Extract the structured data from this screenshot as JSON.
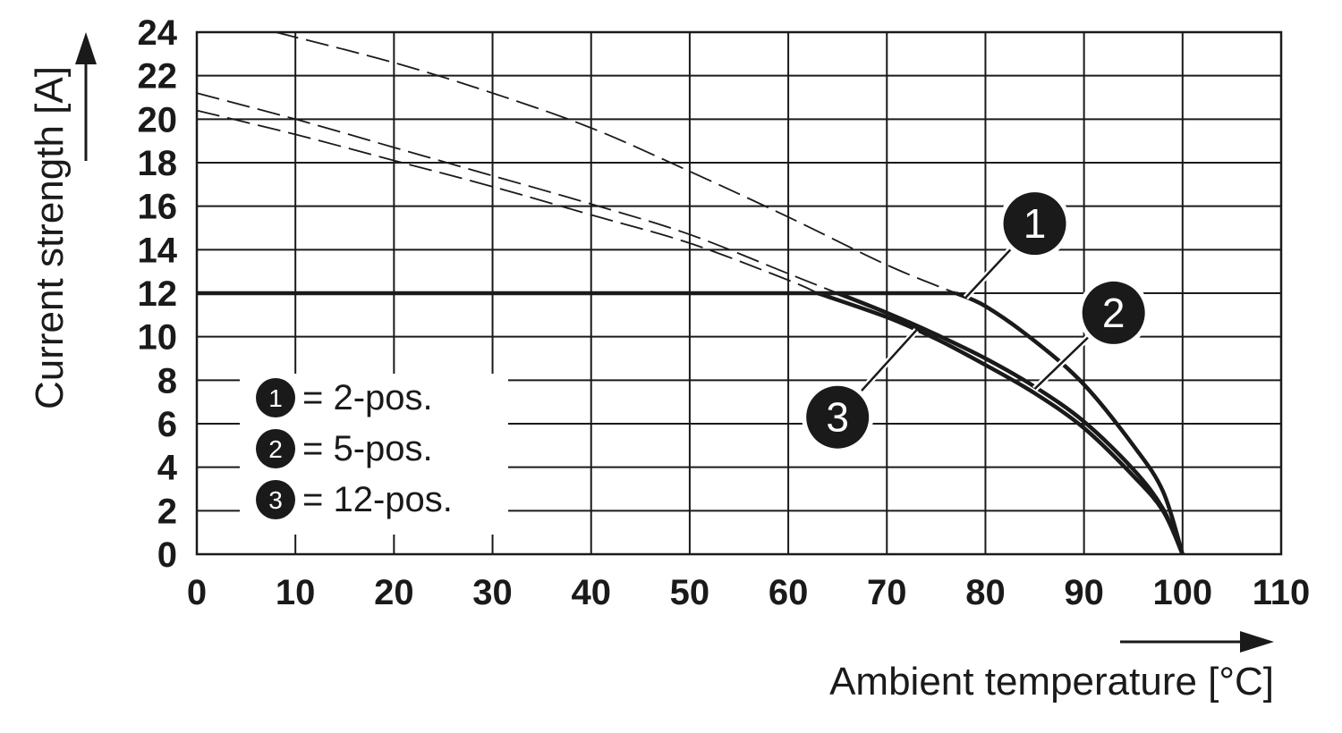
{
  "chart_data": {
    "type": "line",
    "xlabel": "Ambient temperature [°C]",
    "ylabel": "Current strength [A]",
    "xlim": [
      0,
      110
    ],
    "ylim": [
      0,
      24
    ],
    "x_ticks": [
      "0",
      "10",
      "20",
      "30",
      "40",
      "50",
      "60",
      "70",
      "80",
      "90",
      "100",
      "110"
    ],
    "y_ticks": [
      "0",
      "2",
      "4",
      "6",
      "8",
      "10",
      "12",
      "14",
      "16",
      "18",
      "20",
      "22",
      "24"
    ],
    "grid": true,
    "legend": {
      "position": "bottom-left",
      "entries": [
        {
          "marker": "1",
          "text": "= 2-pos."
        },
        {
          "marker": "2",
          "text": "= 5-pos."
        },
        {
          "marker": "3",
          "text": "= 12-pos."
        }
      ]
    },
    "constant_limit": {
      "y": 12,
      "x": [
        0,
        77
      ]
    },
    "series": [
      {
        "marker": "1",
        "derating": {
          "x": [
            77,
            80,
            85,
            90,
            95,
            98,
            100
          ],
          "y": [
            12,
            11.4,
            9.8,
            7.8,
            5.0,
            2.9,
            0
          ]
        },
        "extrapolation": {
          "x": [
            8,
            20,
            30,
            40,
            50,
            60,
            70,
            77
          ],
          "y": [
            24,
            22.6,
            21.2,
            19.6,
            17.6,
            15.5,
            13.3,
            12
          ]
        },
        "label_anchor": [
          78,
          11.8
        ]
      },
      {
        "marker": "2",
        "derating": {
          "x": [
            65,
            70,
            75,
            80,
            85,
            90,
            95,
            98,
            100
          ],
          "y": [
            12,
            11.1,
            10.1,
            9.0,
            7.7,
            6.1,
            3.9,
            2.1,
            0
          ]
        },
        "extrapolation": {
          "x": [
            0,
            10,
            20,
            30,
            40,
            50,
            60,
            65
          ],
          "y": [
            21.2,
            20.0,
            18.7,
            17.4,
            16.1,
            14.7,
            12.9,
            12
          ]
        },
        "label_anchor": [
          85,
          7.6
        ]
      },
      {
        "marker": "3",
        "derating": {
          "x": [
            63,
            70,
            75,
            80,
            85,
            90,
            95,
            98,
            100
          ],
          "y": [
            12,
            10.9,
            9.9,
            8.7,
            7.4,
            5.8,
            3.6,
            2.0,
            0
          ]
        },
        "extrapolation": {
          "x": [
            0,
            10,
            20,
            30,
            40,
            50,
            60,
            63
          ],
          "y": [
            20.4,
            19.3,
            18.1,
            16.9,
            15.6,
            14.3,
            12.6,
            12
          ]
        },
        "label_anchor": [
          73,
          10.3
        ]
      }
    ],
    "callouts": [
      {
        "marker": "1",
        "at": [
          85,
          15.2
        ]
      },
      {
        "marker": "2",
        "at": [
          93,
          11.1
        ]
      },
      {
        "marker": "3",
        "at": [
          65,
          6.3
        ]
      }
    ]
  }
}
